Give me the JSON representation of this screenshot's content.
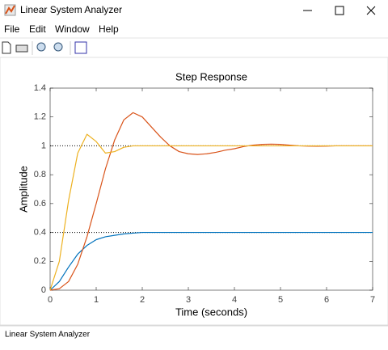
{
  "window": {
    "title": "Linear System Analyzer",
    "menu": [
      "File",
      "Edit",
      "Window",
      "Help"
    ],
    "status": "Linear System Analyzer"
  },
  "chart_data": {
    "type": "line",
    "title": "Step Response",
    "x_label": "Time (seconds)",
    "y_label": "Amplitude",
    "x": [
      0,
      0.2,
      0.4,
      0.6,
      0.8,
      1.0,
      1.2,
      1.4,
      1.6,
      1.8,
      2.0,
      2.2,
      2.4,
      2.6,
      2.8,
      3.0,
      3.2,
      3.4,
      3.6,
      3.8,
      4.0,
      4.2,
      4.4,
      4.6,
      4.8,
      5.0,
      5.2,
      5.4,
      5.6,
      5.8,
      6.0,
      6.2,
      6.4,
      6.6,
      6.8,
      7.0
    ],
    "series": [
      {
        "color": "#0072bd",
        "values": [
          0,
          0.06,
          0.16,
          0.25,
          0.31,
          0.35,
          0.37,
          0.38,
          0.39,
          0.395,
          0.4,
          0.4,
          0.4,
          0.4,
          0.4,
          0.4,
          0.4,
          0.4,
          0.4,
          0.4,
          0.4,
          0.4,
          0.4,
          0.4,
          0.4,
          0.4,
          0.4,
          0.4,
          0.4,
          0.4,
          0.4,
          0.4,
          0.4,
          0.4,
          0.4,
          0.4
        ]
      },
      {
        "color": "#d95319",
        "values": [
          0,
          0.01,
          0.06,
          0.18,
          0.37,
          0.6,
          0.84,
          1.04,
          1.18,
          1.23,
          1.2,
          1.13,
          1.06,
          1.0,
          0.96,
          0.945,
          0.94,
          0.945,
          0.955,
          0.97,
          0.98,
          0.995,
          1.005,
          1.01,
          1.012,
          1.01,
          1.005,
          1.0,
          0.998,
          0.997,
          0.998,
          1.0,
          1.0,
          1.0,
          1.0,
          1.0
        ]
      },
      {
        "color": "#edb120",
        "values": [
          0,
          0.2,
          0.62,
          0.95,
          1.08,
          1.03,
          0.95,
          0.96,
          0.99,
          1.0,
          1.0,
          1.0,
          1.0,
          1.0,
          1.0,
          1.0,
          1.0,
          1.0,
          1.0,
          1.0,
          1.0,
          1.0,
          1.0,
          1.0,
          1.0,
          1.0,
          1.0,
          1.0,
          1.0,
          1.0,
          1.0,
          1.0,
          1.0,
          1.0,
          1.0,
          1.0
        ]
      }
    ],
    "steady_state": [
      1,
      0.4
    ],
    "xlim": [
      0,
      7
    ],
    "ylim": [
      0,
      1.4
    ],
    "xticks": [
      0,
      1,
      2,
      3,
      4,
      5,
      6,
      7
    ],
    "yticks": [
      0,
      0.2,
      0.4,
      0.6,
      0.8,
      1,
      1.2,
      1.4
    ]
  }
}
